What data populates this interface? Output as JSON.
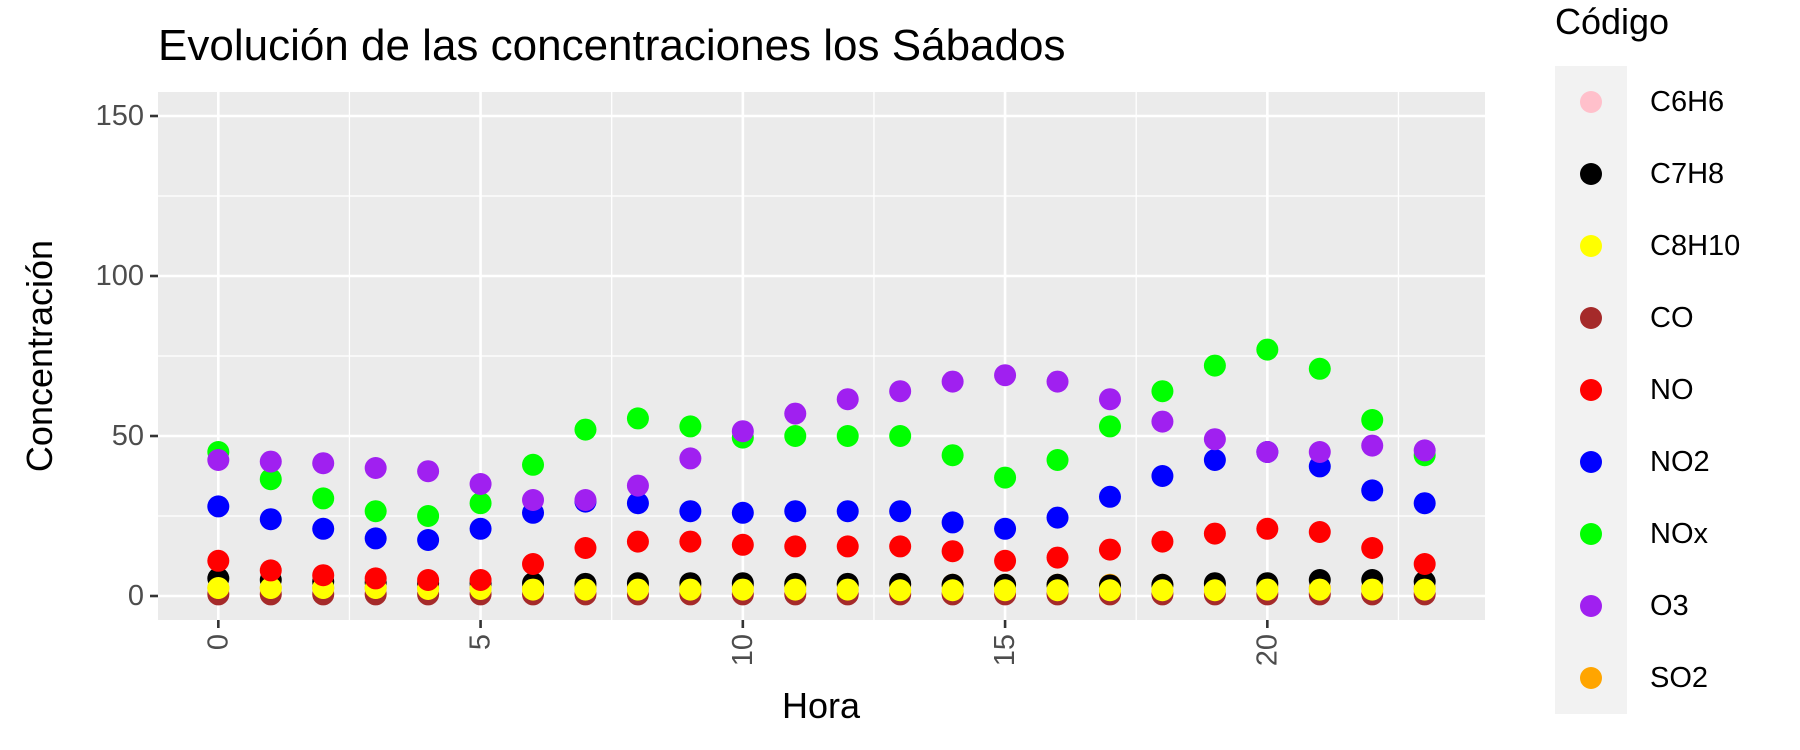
{
  "chart_data": {
    "type": "scatter",
    "title": "Evolución de las concentraciones los Sábados",
    "xlabel": "Hora",
    "ylabel": "Concentración",
    "xlim": [
      -1.15,
      24.15
    ],
    "ylim": [
      -7.5,
      157.5
    ],
    "x_ticks": [
      0,
      5,
      10,
      15,
      20
    ],
    "y_ticks": [
      0,
      50,
      100,
      150
    ],
    "x_tick_labels": [
      "0",
      "5",
      "10",
      "15",
      "20"
    ],
    "y_tick_labels": [
      "0",
      "50",
      "100",
      "150"
    ],
    "grid": true,
    "legend": {
      "title": "Código",
      "position": "right"
    },
    "x": [
      0,
      1,
      2,
      3,
      4,
      5,
      6,
      7,
      8,
      9,
      10,
      11,
      12,
      13,
      14,
      15,
      16,
      17,
      18,
      19,
      20,
      21,
      22,
      23
    ],
    "series": [
      {
        "name": "C6H6",
        "color": "#FFC0CB",
        "values": [
          1,
          1,
          1,
          1,
          1,
          1,
          1,
          1,
          1,
          1,
          1,
          1,
          1,
          1,
          1,
          1,
          1,
          1,
          1,
          1,
          1,
          1,
          1,
          1
        ]
      },
      {
        "name": "C7H8",
        "color": "#000000",
        "values": [
          5.5,
          5,
          4.5,
          4.2,
          4,
          4,
          4,
          3.8,
          4,
          4,
          4,
          3.8,
          3.8,
          3.8,
          3.5,
          3.5,
          3.5,
          3.3,
          3.5,
          4,
          4,
          5,
          5,
          4.5
        ]
      },
      {
        "name": "C8H10",
        "color": "#FFFF00",
        "values": [
          2.5,
          2.5,
          2.5,
          2.5,
          2.2,
          2.2,
          2,
          2,
          2,
          2,
          2,
          2,
          2,
          1.8,
          1.8,
          1.8,
          1.8,
          1.8,
          1.8,
          1.8,
          2,
          2,
          2,
          2
        ]
      },
      {
        "name": "CO",
        "color": "#A52A2A",
        "values": [
          0.5,
          0.5,
          0.5,
          0.5,
          0.5,
          0.5,
          0.5,
          0.5,
          0.5,
          0.5,
          0.5,
          0.5,
          0.5,
          0.5,
          0.5,
          0.5,
          0.5,
          0.5,
          0.5,
          0.5,
          0.5,
          0.5,
          0.5,
          0.5
        ]
      },
      {
        "name": "NO",
        "color": "#FF0000",
        "values": [
          11,
          8,
          6.5,
          5.5,
          5,
          5,
          10,
          15,
          17,
          17,
          16,
          15.5,
          15.5,
          15.5,
          14,
          11,
          12,
          14.5,
          17,
          19.5,
          21,
          20,
          15,
          10
        ]
      },
      {
        "name": "NO2",
        "color": "#0000FF",
        "values": [
          28,
          24,
          21,
          18,
          17.5,
          21,
          26,
          29.5,
          29,
          26.5,
          26,
          26.5,
          26.5,
          26.5,
          23,
          21,
          24.5,
          31,
          37.5,
          42.5,
          45,
          40.5,
          33,
          29
        ]
      },
      {
        "name": "NOx",
        "color": "#00FF00",
        "values": [
          45,
          36.5,
          30.5,
          26.5,
          25,
          29,
          41,
          52,
          55.5,
          53,
          49.5,
          50,
          50,
          50,
          44,
          37,
          42.5,
          53,
          64,
          72,
          77,
          71,
          55,
          44
        ]
      },
      {
        "name": "O3",
        "color": "#A020F0",
        "values": [
          42.5,
          42,
          41.5,
          40,
          39,
          35,
          30,
          30,
          34.5,
          43,
          51.5,
          57,
          61.5,
          64,
          67,
          69,
          67,
          61.5,
          54.5,
          49,
          45,
          45,
          47,
          45.5
        ]
      },
      {
        "name": "SO2",
        "color": "#FFA500",
        "values": [
          2.5,
          2.5,
          2.5,
          2.5,
          2.5,
          2.5,
          2.5,
          2.5,
          3,
          3,
          3,
          3,
          3.5,
          3.5,
          3.5,
          3.5,
          3.5,
          3.5,
          3.5,
          3.5,
          3,
          2.5,
          2.5,
          2.5
        ]
      }
    ],
    "draw_order": [
      "C6H6",
      "CO",
      "SO2",
      "C7H8",
      "C8H10",
      "NO",
      "NO2",
      "NOx",
      "O3"
    ],
    "colors": {
      "panel": "#EBEBEB",
      "grid": "#FFFFFF",
      "legend_key_bg": "#F2F2F2"
    }
  }
}
